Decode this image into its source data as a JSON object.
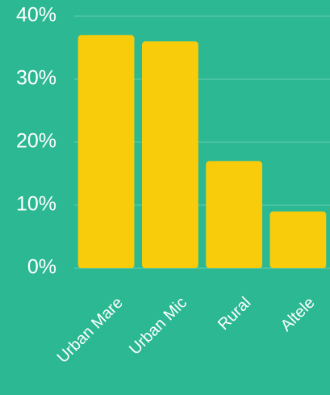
{
  "chart_data": {
    "type": "bar",
    "categories": [
      "Urban Mare",
      "Urban Mic",
      "Rural",
      "Altele"
    ],
    "values": [
      37,
      36,
      17,
      9
    ],
    "color": "#f9cc0b",
    "ylim": [
      0,
      40
    ],
    "yticks": [
      {
        "value": 0,
        "label": "0%"
      },
      {
        "value": 10,
        "label": "10%"
      },
      {
        "value": 20,
        "label": "20%"
      },
      {
        "value": 30,
        "label": "30%"
      },
      {
        "value": 40,
        "label": "40%"
      }
    ],
    "grid": true
  }
}
